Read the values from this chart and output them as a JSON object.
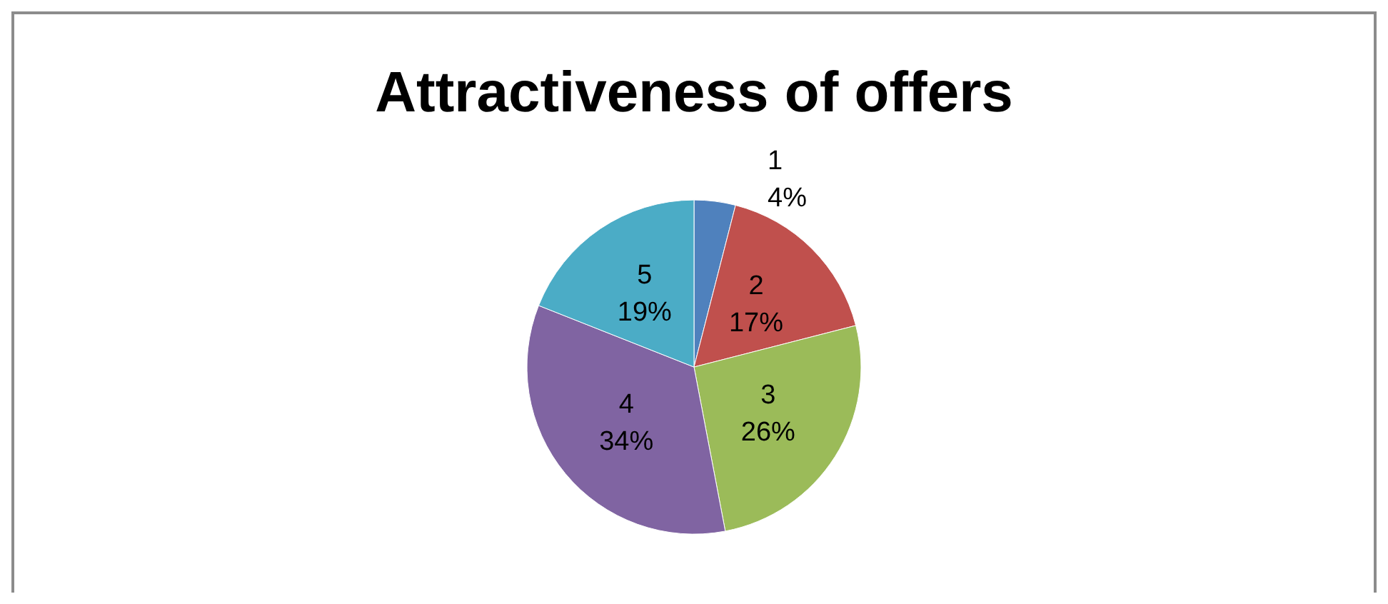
{
  "chart_data": {
    "type": "pie",
    "title": "Attractiveness of offers",
    "categories": [
      "1",
      "2",
      "3",
      "4",
      "5"
    ],
    "values": [
      4,
      17,
      26,
      34,
      19
    ],
    "colors": [
      "#4f81bd",
      "#c0504d",
      "#9bbb59",
      "#8064a2",
      "#4bacc6"
    ],
    "value_labels": [
      "4%",
      "17%",
      "26%",
      "34%",
      "19%"
    ],
    "legend": false
  }
}
